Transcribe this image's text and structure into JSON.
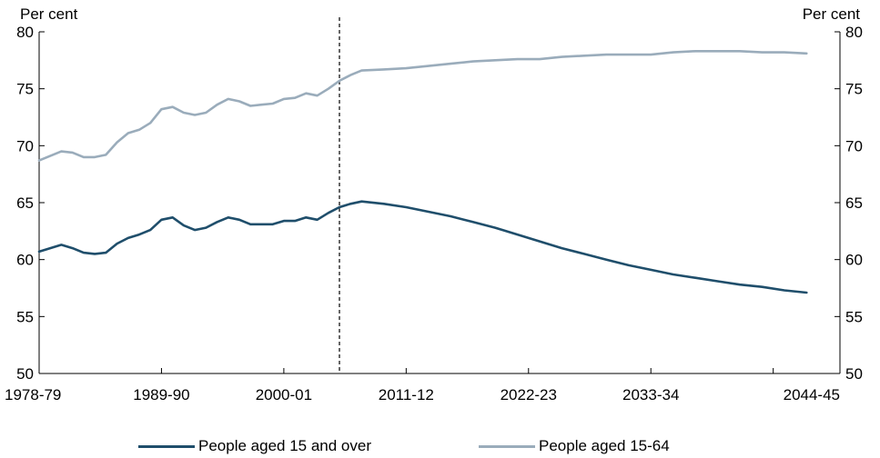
{
  "chart_data": {
    "type": "line",
    "ylabel_left": "Per cent",
    "ylabel_right": "Per cent",
    "ylim": [
      50,
      80
    ],
    "yticks": [
      50,
      55,
      60,
      65,
      70,
      75,
      80
    ],
    "xlim": [
      1978,
      2050
    ],
    "xticks": [
      {
        "x": 1978,
        "label": "1978-79"
      },
      {
        "x": 1989,
        "label": "1989-90"
      },
      {
        "x": 2000,
        "label": "2000-01"
      },
      {
        "x": 2011,
        "label": "2011-12"
      },
      {
        "x": 2022,
        "label": "2022-23"
      },
      {
        "x": 2033,
        "label": "2033-34"
      },
      {
        "x": 2044,
        "label": "2044-45"
      }
    ],
    "projection_start": 2005,
    "series": [
      {
        "name": "People aged 15 and over",
        "color": "#1f4e6b",
        "points": [
          [
            1978,
            60.7
          ],
          [
            1979,
            61.0
          ],
          [
            1980,
            61.3
          ],
          [
            1981,
            61.0
          ],
          [
            1982,
            60.6
          ],
          [
            1983,
            60.5
          ],
          [
            1984,
            60.6
          ],
          [
            1985,
            61.4
          ],
          [
            1986,
            61.9
          ],
          [
            1987,
            62.2
          ],
          [
            1988,
            62.6
          ],
          [
            1989,
            63.5
          ],
          [
            1990,
            63.7
          ],
          [
            1991,
            63.0
          ],
          [
            1992,
            62.6
          ],
          [
            1993,
            62.8
          ],
          [
            1994,
            63.3
          ],
          [
            1995,
            63.7
          ],
          [
            1996,
            63.5
          ],
          [
            1997,
            63.1
          ],
          [
            1998,
            63.1
          ],
          [
            1999,
            63.1
          ],
          [
            2000,
            63.4
          ],
          [
            2001,
            63.4
          ],
          [
            2002,
            63.7
          ],
          [
            2003,
            63.5
          ],
          [
            2004,
            64.1
          ],
          [
            2005,
            64.6
          ],
          [
            2006,
            64.9
          ],
          [
            2007,
            65.1
          ],
          [
            2009,
            64.9
          ],
          [
            2011,
            64.6
          ],
          [
            2013,
            64.2
          ],
          [
            2015,
            63.8
          ],
          [
            2017,
            63.3
          ],
          [
            2019,
            62.8
          ],
          [
            2021,
            62.2
          ],
          [
            2023,
            61.6
          ],
          [
            2025,
            61.0
          ],
          [
            2027,
            60.5
          ],
          [
            2029,
            60.0
          ],
          [
            2031,
            59.5
          ],
          [
            2033,
            59.1
          ],
          [
            2035,
            58.7
          ],
          [
            2037,
            58.4
          ],
          [
            2039,
            58.1
          ],
          [
            2041,
            57.8
          ],
          [
            2043,
            57.6
          ],
          [
            2045,
            57.3
          ],
          [
            2047,
            57.1
          ]
        ]
      },
      {
        "name": "People aged 15-64",
        "color": "#9aacbb",
        "points": [
          [
            1978,
            68.7
          ],
          [
            1979,
            69.1
          ],
          [
            1980,
            69.5
          ],
          [
            1981,
            69.4
          ],
          [
            1982,
            69.0
          ],
          [
            1983,
            69.0
          ],
          [
            1984,
            69.2
          ],
          [
            1985,
            70.3
          ],
          [
            1986,
            71.1
          ],
          [
            1987,
            71.4
          ],
          [
            1988,
            72.0
          ],
          [
            1989,
            73.2
          ],
          [
            1990,
            73.4
          ],
          [
            1991,
            72.9
          ],
          [
            1992,
            72.7
          ],
          [
            1993,
            72.9
          ],
          [
            1994,
            73.6
          ],
          [
            1995,
            74.1
          ],
          [
            1996,
            73.9
          ],
          [
            1997,
            73.5
          ],
          [
            1998,
            73.6
          ],
          [
            1999,
            73.7
          ],
          [
            2000,
            74.1
          ],
          [
            2001,
            74.2
          ],
          [
            2002,
            74.6
          ],
          [
            2003,
            74.4
          ],
          [
            2004,
            75.0
          ],
          [
            2005,
            75.7
          ],
          [
            2006,
            76.2
          ],
          [
            2007,
            76.6
          ],
          [
            2009,
            76.7
          ],
          [
            2011,
            76.8
          ],
          [
            2013,
            77.0
          ],
          [
            2015,
            77.2
          ],
          [
            2017,
            77.4
          ],
          [
            2019,
            77.5
          ],
          [
            2021,
            77.6
          ],
          [
            2023,
            77.6
          ],
          [
            2025,
            77.8
          ],
          [
            2027,
            77.9
          ],
          [
            2029,
            78.0
          ],
          [
            2031,
            78.0
          ],
          [
            2033,
            78.0
          ],
          [
            2035,
            78.2
          ],
          [
            2037,
            78.3
          ],
          [
            2039,
            78.3
          ],
          [
            2041,
            78.3
          ],
          [
            2043,
            78.2
          ],
          [
            2045,
            78.2
          ],
          [
            2047,
            78.1
          ]
        ]
      }
    ]
  }
}
